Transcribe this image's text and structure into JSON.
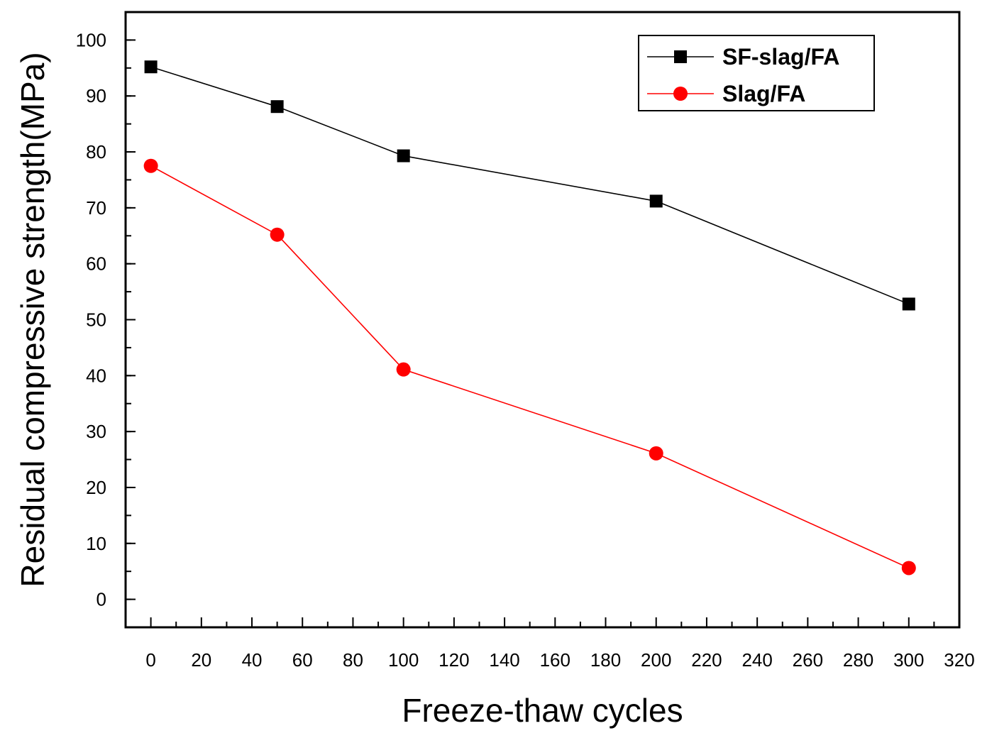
{
  "chart_data": {
    "type": "line",
    "title": "",
    "xlabel": "Freeze-thaw cycles",
    "ylabel": "Residual compressive strength(MPa)",
    "xlim": [
      -10,
      320
    ],
    "ylim": [
      -5,
      105
    ],
    "xticks": [
      0,
      20,
      40,
      60,
      80,
      100,
      120,
      140,
      160,
      180,
      200,
      220,
      240,
      260,
      280,
      300,
      320
    ],
    "yticks": [
      0,
      10,
      20,
      30,
      40,
      50,
      60,
      70,
      80,
      90,
      100
    ],
    "x": [
      0,
      50,
      100,
      200,
      300
    ],
    "series": [
      {
        "name": "SF-slag/FA",
        "values": [
          95.2,
          88.1,
          79.3,
          71.2,
          52.8
        ],
        "color": "#000000",
        "marker": "square"
      },
      {
        "name": "Slag/FA",
        "values": [
          77.5,
          65.2,
          41.1,
          26.1,
          5.6
        ],
        "color": "#ff0000",
        "marker": "circle"
      }
    ],
    "grid": false,
    "legend_position": "top-right"
  }
}
